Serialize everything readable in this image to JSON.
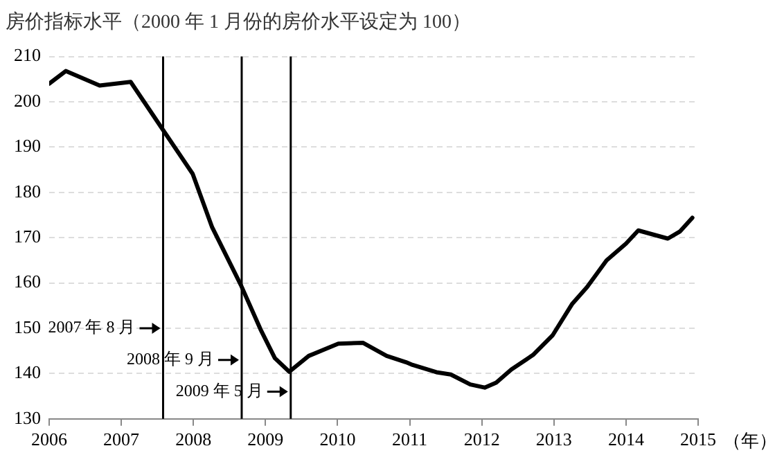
{
  "chart_data": {
    "type": "line",
    "title": "房价指标水平（2000 年 1 月份的房价水平设定为 100）",
    "xlabel": "（年）",
    "x": [
      2006.0,
      2006.23,
      2006.7,
      2007.13,
      2007.57,
      2007.99,
      2008.26,
      2008.66,
      2008.93,
      2009.13,
      2009.33,
      2009.6,
      2010.01,
      2010.35,
      2010.68,
      2010.95,
      2011.04,
      2011.37,
      2011.57,
      2011.84,
      2012.04,
      2012.2,
      2012.41,
      2012.71,
      2012.98,
      2013.25,
      2013.46,
      2013.73,
      2014.0,
      2014.17,
      2014.58,
      2014.75,
      2014.92
    ],
    "series": [
      {
        "color": "#000000",
        "values": [
          204,
          206.8,
          203.6,
          204.4,
          194,
          184.1,
          172.3,
          159.5,
          149.8,
          143.4,
          140.4,
          143.9,
          146.6,
          146.8,
          143.9,
          142.5,
          141.9,
          140.3,
          139.8,
          137.6,
          136.9,
          138,
          140.9,
          144.1,
          148.4,
          155.3,
          159.1,
          165,
          168.7,
          171.6,
          169.8,
          171.4,
          174.4
        ]
      }
    ],
    "xlim": [
      2006,
      2015
    ],
    "xticks": [
      2006,
      2007,
      2008,
      2009,
      2010,
      2011,
      2012,
      2013,
      2014,
      2015
    ],
    "ylim": [
      130,
      210
    ],
    "yticks": [
      130,
      140,
      150,
      160,
      170,
      180,
      190,
      200,
      210
    ],
    "grid": "y",
    "legend": false,
    "marker": "none",
    "line_style": "solid",
    "ref_lines": [
      {
        "axis": "x",
        "value": 2007.58,
        "label": "2007 年 8 月",
        "color": "#000000"
      },
      {
        "axis": "x",
        "value": 2008.67,
        "label": "2008 年 9 月",
        "color": "#000000"
      },
      {
        "axis": "x",
        "value": 2009.35,
        "label": "2009 年 5 月",
        "color": "#000000"
      }
    ]
  }
}
